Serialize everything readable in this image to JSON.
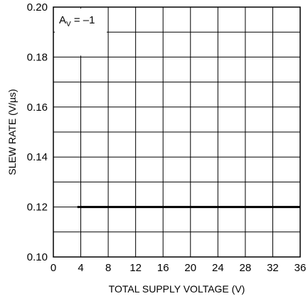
{
  "chart_data": {
    "type": "line",
    "title": "",
    "xlabel": "TOTAL SUPPLY VOLTAGE (V)",
    "ylabel": "SLEW RATE (V/µs)",
    "xlim": [
      0,
      36
    ],
    "ylim": [
      0.1,
      0.2
    ],
    "x_ticks": [
      0,
      4,
      8,
      12,
      16,
      20,
      24,
      28,
      32,
      36
    ],
    "x_tick_labels": [
      "0",
      "4",
      "8",
      "12",
      "16",
      "20",
      "24",
      "28",
      "32",
      "36"
    ],
    "y_ticks": [
      0.1,
      0.12,
      0.14,
      0.16,
      0.18,
      0.2
    ],
    "y_tick_labels": [
      "0.10",
      "0.12",
      "0.14",
      "0.16",
      "0.18",
      "0.20"
    ],
    "x_grid_step": 4,
    "y_grid_step": 0.01,
    "grid": true,
    "annotation": {
      "main": "A",
      "sub": "V",
      "rest": " = –1"
    },
    "series": [
      {
        "x": [
          3.5,
          36
        ],
        "y": [
          0.12,
          0.12
        ]
      }
    ]
  }
}
